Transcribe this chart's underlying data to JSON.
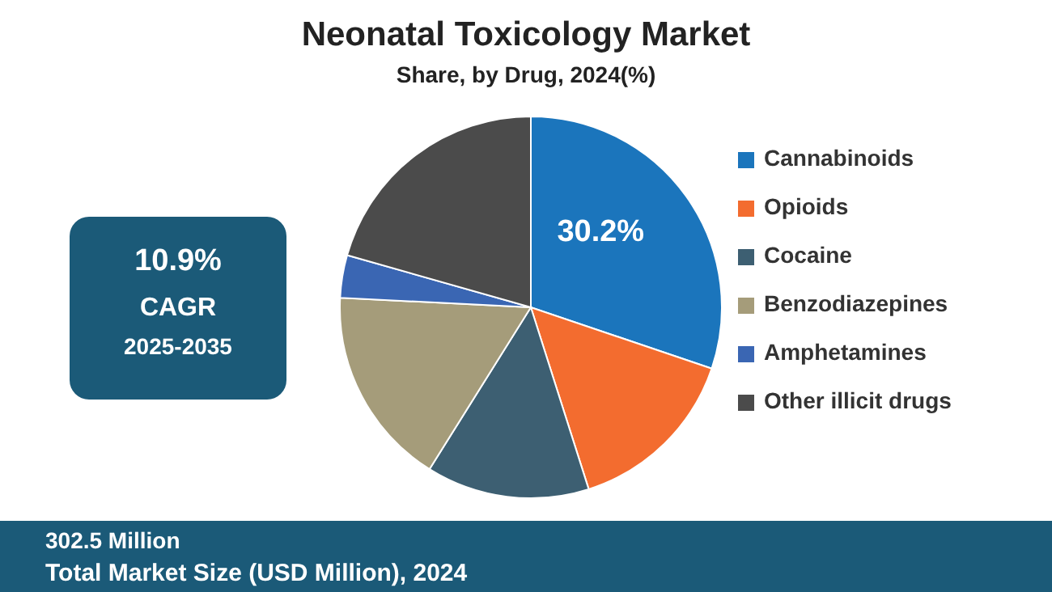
{
  "chart_data": {
    "type": "pie",
    "title": "Neonatal Toxicology Market",
    "subtitle": "Share, by Drug, 2024(%)",
    "categories": [
      "Cannabinoids",
      "Opioids",
      "Cocaine",
      "Benzodiazepines",
      "Amphetamines",
      "Other illicit drugs"
    ],
    "values": [
      30.2,
      14.9,
      13.8,
      16.9,
      3.6,
      20.6
    ],
    "colors": [
      "#1b75bc",
      "#f36c2f",
      "#3d5f72",
      "#a59c7a",
      "#3a66b3",
      "#4b4b4b"
    ],
    "value_labels": [
      "30.2%",
      null,
      null,
      null,
      null,
      null
    ],
    "legend": "right",
    "annotations": [
      "10.9%",
      "CAGR",
      "2025-2035",
      "302.5 Million",
      "Total Market Size (USD Million), 2024"
    ]
  }
}
